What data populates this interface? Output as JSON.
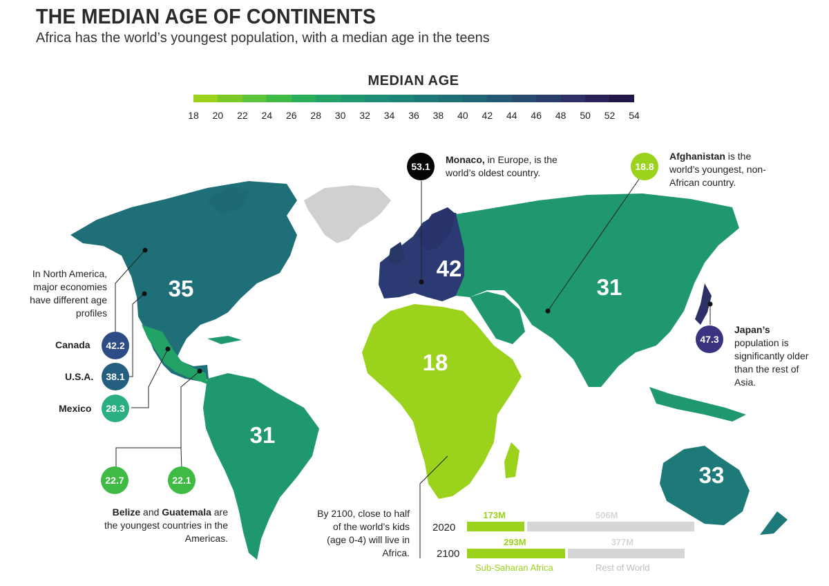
{
  "title": "THE MEDIAN AGE OF CONTINENTS",
  "subtitle": "Africa has the world’s youngest population, with a median age in the teens",
  "legend": {
    "title": "MEDIAN AGE",
    "ticks": [
      "18",
      "20",
      "22",
      "24",
      "26",
      "28",
      "30",
      "32",
      "34",
      "36",
      "38",
      "40",
      "42",
      "44",
      "46",
      "48",
      "50",
      "52",
      "54"
    ],
    "colors": [
      "#9ad21c",
      "#7cc828",
      "#5cc23a",
      "#3fba45",
      "#2aae5a",
      "#22a266",
      "#1f9870",
      "#1d8e76",
      "#1d8478",
      "#1e7a79",
      "#1f6f78",
      "#216476",
      "#235873",
      "#264b6f",
      "#293e6b",
      "#2c3066",
      "#2a2158",
      "#221547"
    ]
  },
  "regions": {
    "north_america": "35",
    "europe": "42",
    "asia": "31",
    "africa": "18",
    "south_america": "31",
    "oceania": "33"
  },
  "callouts": {
    "monaco": {
      "value": "53.1",
      "name": "Monaco,",
      "text": " in Europe, is the world’s oldest country."
    },
    "afghanistan": {
      "value": "18.8",
      "name": "Afghanistan",
      "text": " is the world’s youngest, non-African country."
    },
    "japan": {
      "value": "47.3",
      "name": "Japan’s",
      "text": " population is significantly older than the rest of Asia."
    },
    "north_america_note": "In North America, major economies have different age profiles",
    "canada": {
      "name": "Canada",
      "value": "42.2"
    },
    "usa": {
      "name": "U.S.A.",
      "value": "38.1"
    },
    "mexico": {
      "name": "Mexico",
      "value": "28.3"
    },
    "belize": {
      "value": "22.7"
    },
    "guatemala": {
      "value": "22.1"
    },
    "americas_note": {
      "name1": "Belize",
      "and": " and ",
      "name2": "Guatemala",
      "text": " are the youngest countries in the Americas."
    },
    "africa_note": "By 2100, close to half of the world’s kids (age 0-4) will live in Africa."
  },
  "kids_chart": {
    "rows": [
      {
        "year": "2020",
        "africa": "173M",
        "rest": "506M",
        "africa_value": 173,
        "rest_value": 506
      },
      {
        "year": "2100",
        "africa": "293M",
        "rest": "377M",
        "africa_value": 293,
        "rest_value": 377
      }
    ],
    "legend_africa": "Sub-Saharan Africa",
    "legend_rest": "Rest of World",
    "africa_color": "#9ad21c",
    "rest_color": "#d6d6d6"
  }
}
